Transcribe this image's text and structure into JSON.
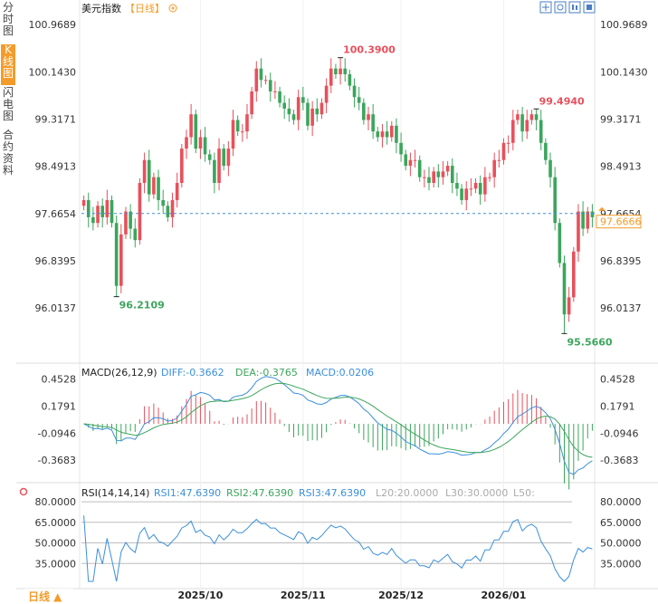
{
  "side_tabs": [
    {
      "label": "分时图",
      "active": false
    },
    {
      "label": "K线图",
      "active": true
    },
    {
      "label": "闪电图",
      "active": false
    },
    {
      "label": "合约资料",
      "active": false
    }
  ],
  "header": {
    "title": "美元指数",
    "period_tag": "【日线】",
    "zoom_icon": "zoom-in-icon"
  },
  "toolbar_icons": [
    "move-icon",
    "crosshair-icon",
    "candle-mode-icon",
    "settings-icon"
  ],
  "bottom_period": "日线 ▲",
  "colors": {
    "up": "#e8505b",
    "down": "#3ca55c",
    "diff": "#3b8fdb",
    "dea": "#3ca55c",
    "rsi": "#3b8fdb",
    "price_line": "#3b8fdb",
    "price_tag": "#f39c2a"
  },
  "chart_data": {
    "type": "candlestick",
    "price_axis": {
      "ticks": [
        "100.9689",
        "100.1430",
        "99.3171",
        "98.4913",
        "97.6654",
        "96.8395",
        "96.0137"
      ],
      "range": [
        95.35,
        101.05
      ]
    },
    "x_ticks": [
      {
        "label": "2025/10",
        "index": 25
      },
      {
        "label": "2025/11",
        "index": 47
      },
      {
        "label": "2025/12",
        "index": 68
      },
      {
        "label": "2026/01",
        "index": 90
      }
    ],
    "current_price": "97.6666",
    "annotations": {
      "high": {
        "label": "100.3900",
        "value": 100.39,
        "index": 55
      },
      "low_early": {
        "label": "96.2109",
        "value": 96.2109,
        "index": 7
      },
      "high_recent": {
        "label": "99.4940",
        "value": 99.494,
        "index": 97
      },
      "low_recent": {
        "label": "95.5660",
        "value": 95.566,
        "index": 103
      }
    },
    "close_levels": [
      97.9,
      97.6,
      97.5,
      97.8,
      97.6,
      97.9,
      97.5,
      96.4,
      97.3,
      97.7,
      97.4,
      97.2,
      98.2,
      98.6,
      98.0,
      98.3,
      97.9,
      97.8,
      97.6,
      97.9,
      98.2,
      98.8,
      99.0,
      99.4,
      98.8,
      99.0,
      98.7,
      98.6,
      98.2,
      98.8,
      98.5,
      98.8,
      99.3,
      99.1,
      99.1,
      99.4,
      99.8,
      100.2,
      100.0,
      100.0,
      99.8,
      99.8,
      99.6,
      99.5,
      99.4,
      99.3,
      99.7,
      99.6,
      99.2,
      99.5,
      99.4,
      99.6,
      99.9,
      100.2,
      100.1,
      100.2,
      100.1,
      99.9,
      99.7,
      99.6,
      99.3,
      99.4,
      99.1,
      99.0,
      99.1,
      99.0,
      99.2,
      98.9,
      98.7,
      98.5,
      98.6,
      98.6,
      98.3,
      98.3,
      98.2,
      98.4,
      98.3,
      98.4,
      98.5,
      98.2,
      98.1,
      97.9,
      98.1,
      98.1,
      98.2,
      98.0,
      98.3,
      98.3,
      98.6,
      98.6,
      98.9,
      98.9,
      99.3,
      99.4,
      99.1,
      99.3,
      99.4,
      99.3,
      98.9,
      98.6,
      98.3,
      97.5,
      96.8,
      95.9,
      96.2,
      97.0,
      97.7,
      97.4,
      97.7,
      97.6
    ],
    "macd": {
      "label": "MACD(26,12,9)",
      "diff": "DIFF:-0.3662",
      "dea": "DEA:-0.3765",
      "macd": "MACD:0.0206",
      "ticks": [
        "0.4528",
        "0.1791",
        "-0.0946",
        "-0.3683"
      ],
      "range": [
        -0.55,
        0.55
      ]
    },
    "rsi": {
      "label": "RSI(14,14,14)",
      "rsi1": "RSI1:47.6390",
      "rsi2": "RSI2:47.6390",
      "rsi3": "RSI3:47.6390",
      "l20": "L20:20.0000",
      "l30": "L30:30.0000",
      "l50": "L50:",
      "ticks": [
        "80.0000",
        "65.0000",
        "50.0000",
        "35.0000"
      ],
      "range": [
        20,
        84
      ]
    }
  }
}
